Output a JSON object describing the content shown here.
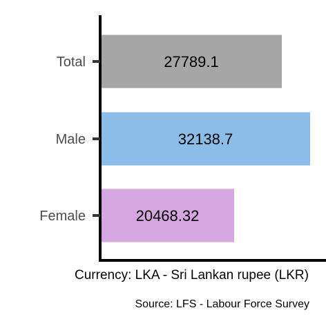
{
  "chart_data": {
    "type": "bar",
    "orientation": "horizontal",
    "categories": [
      "Total",
      "Male",
      "Female"
    ],
    "values": [
      27789.1,
      32138.7,
      20468.32
    ],
    "value_labels": [
      "27789.1",
      "32138.7",
      "20468.32"
    ],
    "colors": [
      "#a6a6a6",
      "#8bbde8",
      "#d5a6e0"
    ],
    "xlim": [
      0,
      32138.7
    ],
    "xlabel": "Currency: LKA - Sri Lankan rupee (LKR)",
    "source": "Source:  LFS - Labour Force Survey",
    "grid": false,
    "legend": "none"
  }
}
